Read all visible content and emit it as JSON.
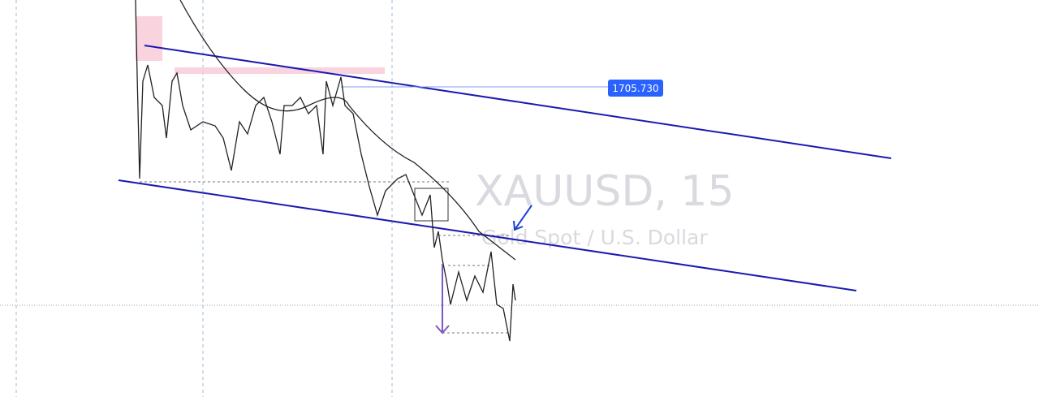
{
  "watermark": {
    "symbol": "XAUUSD, 15",
    "description": "Gold Spot / U.S. Dollar"
  },
  "price_label": "1705.730"
}
